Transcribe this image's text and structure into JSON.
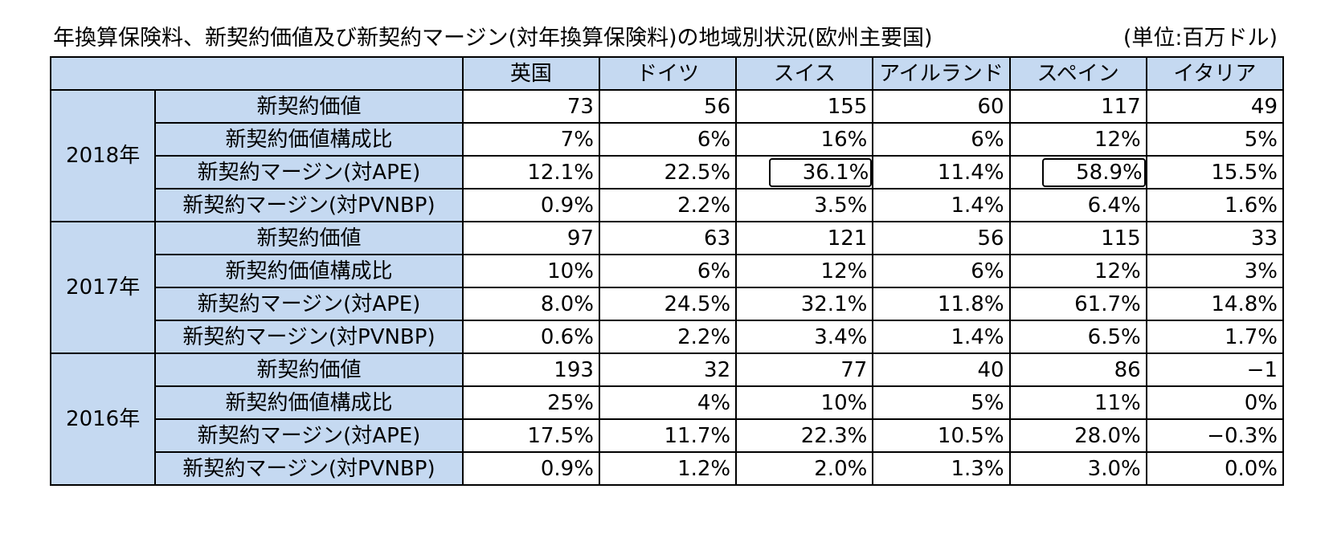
{
  "header": {
    "title": "年換算保険料、新契約価値及び新契約マージン(対年換算保険料)の地域別状況(欧州主要国)",
    "unit": "(単位:百万ドル)"
  },
  "table": {
    "columns": [
      "英国",
      "ドイツ",
      "スイス",
      "アイルランド",
      "スペイン",
      "イタリア"
    ],
    "groups": [
      {
        "year": "2018年",
        "rows": [
          {
            "label": "新契約価値",
            "values": [
              "73",
              "56",
              "155",
              "60",
              "117",
              "49"
            ]
          },
          {
            "label": "新契約価値構成比",
            "values": [
              "7%",
              "6%",
              "16%",
              "6%",
              "12%",
              "5%"
            ]
          },
          {
            "label": "新契約マージン(対APE)",
            "values": [
              "12.1%",
              "22.5%",
              "36.1%",
              "11.4%",
              "58.9%",
              "15.5%"
            ]
          },
          {
            "label": "新契約マージン(対PVNBP)",
            "values": [
              "0.9%",
              "2.2%",
              "3.5%",
              "1.4%",
              "6.4%",
              "1.6%"
            ]
          }
        ]
      },
      {
        "year": "2017年",
        "rows": [
          {
            "label": "新契約価値",
            "values": [
              "97",
              "63",
              "121",
              "56",
              "115",
              "33"
            ]
          },
          {
            "label": "新契約価値構成比",
            "values": [
              "10%",
              "6%",
              "12%",
              "6%",
              "12%",
              "3%"
            ]
          },
          {
            "label": "新契約マージン(対APE)",
            "values": [
              "8.0%",
              "24.5%",
              "32.1%",
              "11.8%",
              "61.7%",
              "14.8%"
            ]
          },
          {
            "label": "新契約マージン(対PVNBP)",
            "values": [
              "0.6%",
              "2.2%",
              "3.4%",
              "1.4%",
              "6.5%",
              "1.7%"
            ]
          }
        ]
      },
      {
        "year": "2016年",
        "rows": [
          {
            "label": "新契約価値",
            "values": [
              "193",
              "32",
              "77",
              "40",
              "86",
              "−1"
            ]
          },
          {
            "label": "新契約価値構成比",
            "values": [
              "25%",
              "4%",
              "10%",
              "5%",
              "11%",
              "0%"
            ]
          },
          {
            "label": "新契約マージン(対APE)",
            "values": [
              "17.5%",
              "11.7%",
              "22.3%",
              "10.5%",
              "28.0%",
              "−0.3%"
            ]
          },
          {
            "label": "新契約マージン(対PVNBP)",
            "values": [
              "0.9%",
              "1.2%",
              "2.0%",
              "1.3%",
              "3.0%",
              "0.0%"
            ]
          }
        ]
      }
    ],
    "highlighted_cells": [
      {
        "group": 0,
        "row": 2,
        "col": 2
      },
      {
        "group": 0,
        "row": 2,
        "col": 4
      }
    ]
  },
  "colors": {
    "header_fill": "#c5d9f1",
    "border": "#000000"
  }
}
